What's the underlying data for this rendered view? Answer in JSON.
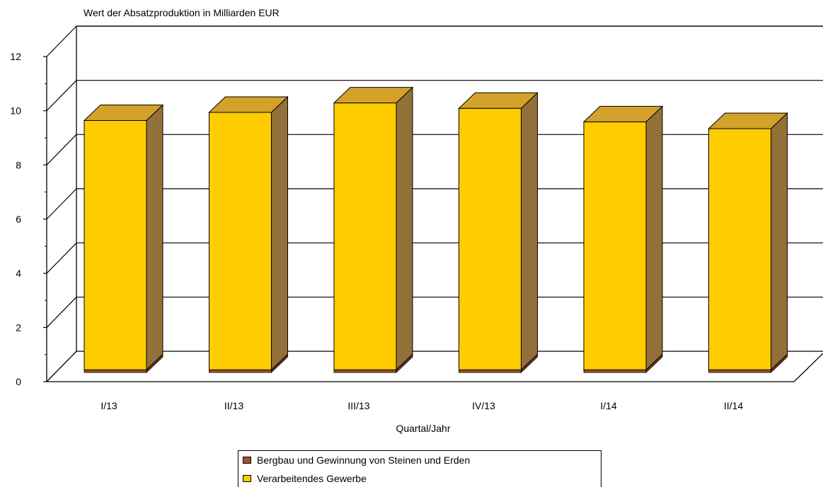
{
  "chart_data": {
    "type": "bar",
    "title": "Wert der Absatzproduktion in Milliarden EUR",
    "xlabel": "Quartal/Jahr",
    "ylabel": "",
    "categories": [
      "I/13",
      "II/13",
      "III/13",
      "IV/13",
      "I/14",
      "II/14"
    ],
    "stacked": true,
    "ylim": [
      0,
      12
    ],
    "yticks": [
      "0",
      "2",
      "4",
      "6",
      "8",
      "10",
      "12"
    ],
    "grid": true,
    "three_d": true,
    "legend_position": "bottom",
    "series": [
      {
        "name": "Bergbau und Gewinnung von Steinen und Erden",
        "values": [
          0.1,
          0.1,
          0.1,
          0.1,
          0.1,
          0.1
        ],
        "color": "#a0522d"
      },
      {
        "name": "Verarbeitendes Gewerbe",
        "values": [
          9.2,
          9.5,
          9.85,
          9.65,
          9.15,
          8.9
        ],
        "color": "#ffcc00"
      }
    ]
  },
  "colors": {
    "bar_front": "#ffcc00",
    "bar_top": "#d4a12a",
    "bar_side": "#93703a",
    "bottom_front": "#a0522d",
    "bottom_side": "#6f3b22"
  }
}
